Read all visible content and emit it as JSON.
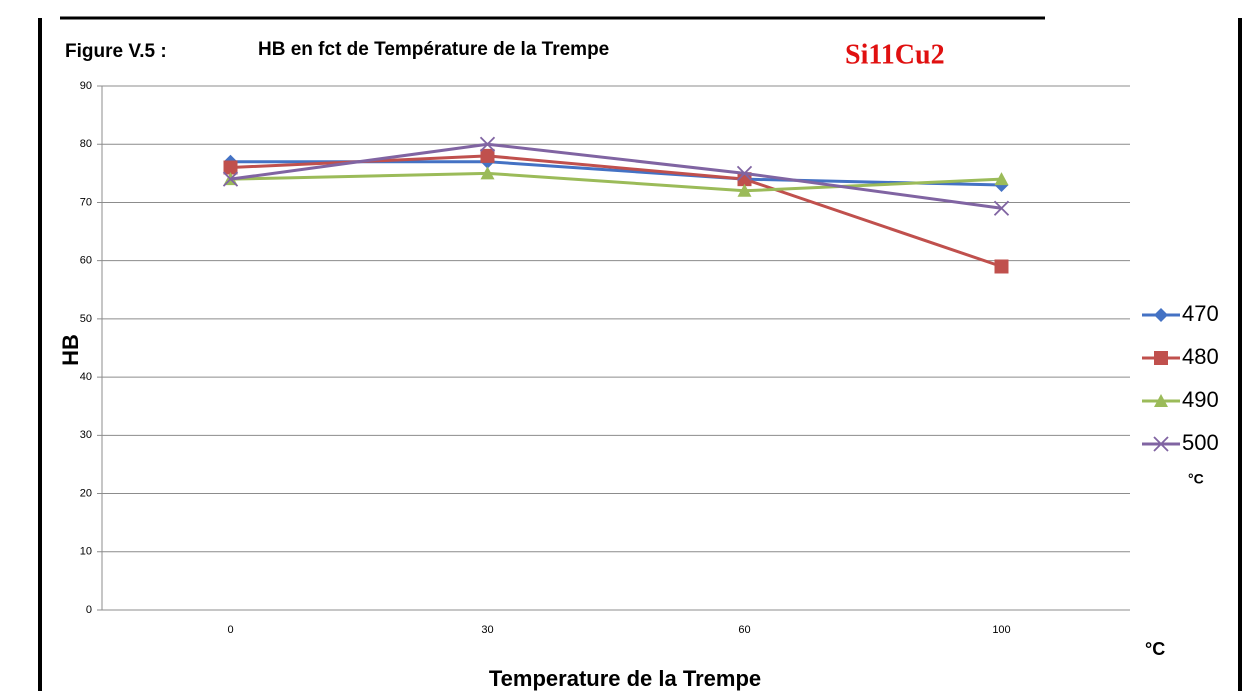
{
  "chart_data": {
    "type": "line",
    "figure_label": "Figure V.5 :",
    "title": "HB en fct de Température de la Trempe",
    "subtitle": "Si11Cu2",
    "y_label": "HB",
    "x_label": "Temperature de la Trempe",
    "x_unit": "°C",
    "legend_title": "°C",
    "legend": "right",
    "grid": true,
    "categories": [
      "0",
      "30",
      "60",
      "100"
    ],
    "series": [
      {
        "name": "470",
        "color": "#4472c4",
        "marker": "diamond",
        "values": [
          77,
          77,
          74,
          73
        ]
      },
      {
        "name": "480",
        "color": "#c0504d",
        "marker": "square",
        "values": [
          76,
          78,
          74,
          59
        ]
      },
      {
        "name": "490",
        "color": "#9bbb59",
        "marker": "triangle",
        "values": [
          74,
          75,
          72,
          74
        ]
      },
      {
        "name": "500",
        "color": "#8064a2",
        "marker": "x",
        "values": [
          74,
          80,
          75,
          69
        ]
      }
    ],
    "ylim": [
      0,
      90
    ],
    "yticks": [
      0,
      10,
      20,
      30,
      40,
      50,
      60,
      70,
      80,
      90
    ]
  }
}
